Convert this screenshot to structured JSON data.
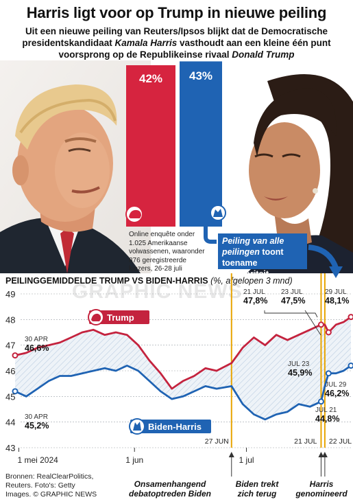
{
  "header": {
    "title": "Harris ligt voor op Trump in nieuwe peiling",
    "subtitle_line1": "Uit een nieuwe peiling van Reuters/Ipsos blijkt dat de Democratische",
    "subtitle_line2_a": "presidentskandidaat ",
    "subtitle_line2_name": "Kamala Harris",
    "subtitle_line2_b": " vasthoudt aan een kleine één punt",
    "subtitle_line3_a": "voorsprong op de Republikeinse rivaal ",
    "subtitle_line3_name": "Donald Trump"
  },
  "poll": {
    "trump_pct": "42%",
    "harris_pct": "43%",
    "trump_color": "#d6243f",
    "harris_color": "#1f63b3",
    "method_text": "Online enquête onder 1.025 Amerikaanse volwassenen, waaronder 876 geregistreerde kiezers, 26-28 juli"
  },
  "callout": {
    "line_a": "Peiling van alle",
    "line_b": "peilingen",
    "line_c": " toont toename populariteit"
  },
  "chart_title": {
    "main": "PEILINGGEMIDDELDE TRUMP VS BIDEN-HARRIS ",
    "note": "(%, afgelopen 3 mnd)"
  },
  "watermark": "GRAPHIC NEWS",
  "chart_data": {
    "type": "line",
    "ylim": [
      43,
      49
    ],
    "yticks": [
      "43",
      "44",
      "45",
      "46",
      "47",
      "48",
      "49"
    ],
    "x_start": "2024-04-30",
    "x_end": "2024-07-29",
    "xticks": [
      {
        "date": "2024-05-01",
        "label": "1 mei 2024"
      },
      {
        "date": "2024-06-01",
        "label": "1 jun"
      },
      {
        "date": "2024-07-01",
        "label": "1 jul"
      }
    ],
    "series": [
      {
        "name": "Trump",
        "color": "#c4233e",
        "points": [
          [
            "2024-04-30",
            46.6
          ],
          [
            "2024-05-03",
            46.7
          ],
          [
            "2024-05-06",
            46.9
          ],
          [
            "2024-05-09",
            47.0
          ],
          [
            "2024-05-12",
            47.1
          ],
          [
            "2024-05-15",
            47.3
          ],
          [
            "2024-05-18",
            47.5
          ],
          [
            "2024-05-21",
            47.6
          ],
          [
            "2024-05-24",
            47.4
          ],
          [
            "2024-05-27",
            47.5
          ],
          [
            "2024-05-30",
            47.4
          ],
          [
            "2024-06-02",
            47.0
          ],
          [
            "2024-06-05",
            46.4
          ],
          [
            "2024-06-08",
            45.9
          ],
          [
            "2024-06-11",
            45.3
          ],
          [
            "2024-06-14",
            45.6
          ],
          [
            "2024-06-17",
            45.8
          ],
          [
            "2024-06-20",
            46.1
          ],
          [
            "2024-06-23",
            46.0
          ],
          [
            "2024-06-27",
            46.3
          ],
          [
            "2024-06-30",
            46.9
          ],
          [
            "2024-07-03",
            47.3
          ],
          [
            "2024-07-06",
            47.0
          ],
          [
            "2024-07-09",
            47.4
          ],
          [
            "2024-07-12",
            47.2
          ],
          [
            "2024-07-15",
            47.4
          ],
          [
            "2024-07-18",
            47.6
          ],
          [
            "2024-07-21",
            47.8
          ],
          [
            "2024-07-22",
            47.8
          ],
          [
            "2024-07-23",
            47.5
          ],
          [
            "2024-07-25",
            47.8
          ],
          [
            "2024-07-27",
            47.9
          ],
          [
            "2024-07-29",
            48.1
          ]
        ],
        "legend": "Trump"
      },
      {
        "name": "Biden-Harris",
        "color": "#1f63b3",
        "points": [
          [
            "2024-04-30",
            45.2
          ],
          [
            "2024-05-03",
            45.0
          ],
          [
            "2024-05-06",
            45.3
          ],
          [
            "2024-05-09",
            45.6
          ],
          [
            "2024-05-12",
            45.8
          ],
          [
            "2024-05-15",
            45.8
          ],
          [
            "2024-05-18",
            45.9
          ],
          [
            "2024-05-21",
            46.0
          ],
          [
            "2024-05-24",
            46.1
          ],
          [
            "2024-05-27",
            46.0
          ],
          [
            "2024-05-30",
            46.2
          ],
          [
            "2024-06-02",
            46.0
          ],
          [
            "2024-06-05",
            45.6
          ],
          [
            "2024-06-08",
            45.2
          ],
          [
            "2024-06-11",
            44.9
          ],
          [
            "2024-06-14",
            45.0
          ],
          [
            "2024-06-17",
            45.2
          ],
          [
            "2024-06-20",
            45.4
          ],
          [
            "2024-06-23",
            45.3
          ],
          [
            "2024-06-27",
            45.4
          ],
          [
            "2024-06-30",
            44.7
          ],
          [
            "2024-07-03",
            44.3
          ],
          [
            "2024-07-06",
            44.1
          ],
          [
            "2024-07-09",
            44.3
          ],
          [
            "2024-07-12",
            44.4
          ],
          [
            "2024-07-15",
            44.7
          ],
          [
            "2024-07-18",
            44.6
          ],
          [
            "2024-07-21",
            44.8
          ],
          [
            "2024-07-22",
            45.4
          ],
          [
            "2024-07-23",
            45.9
          ],
          [
            "2024-07-25",
            45.9
          ],
          [
            "2024-07-27",
            46.0
          ],
          [
            "2024-07-29",
            46.2
          ]
        ],
        "legend": "Biden-Harris"
      }
    ],
    "annotations": [
      {
        "date": "30 APR",
        "value": "46,6%"
      },
      {
        "date": "30 APR",
        "value": "45,2%"
      },
      {
        "date": "21 JUL",
        "value": "47,8%"
      },
      {
        "date": "23 JUL",
        "value": "47,5%"
      },
      {
        "date": "29 JUL",
        "value": "48,1%"
      },
      {
        "date": "JUL 23",
        "value": "45,9%"
      },
      {
        "date": "JUL 29",
        "value": "46,2%"
      },
      {
        "date": "JUL 21",
        "value": "44,8%"
      }
    ],
    "event_lines": [
      {
        "date": "2024-06-27",
        "label": "27 JUN"
      },
      {
        "date": "2024-07-21",
        "label": "21 JUL"
      },
      {
        "date": "2024-07-22",
        "label": "22 JUL"
      }
    ],
    "grid": true
  },
  "events": {
    "debate_a": "Onsamenhangend",
    "debate_b": "debatoptreden Biden",
    "withdraw_a": "Biden trekt",
    "withdraw_b": "zich terug",
    "nominee_a": "Harris",
    "nominee_b": "genomineerd"
  },
  "sources": {
    "line1": "Bronnen: RealClearPolitics,",
    "line2": "Reuters. Foto's: Getty",
    "line3": "Images. © GRAPHIC NEWS"
  }
}
